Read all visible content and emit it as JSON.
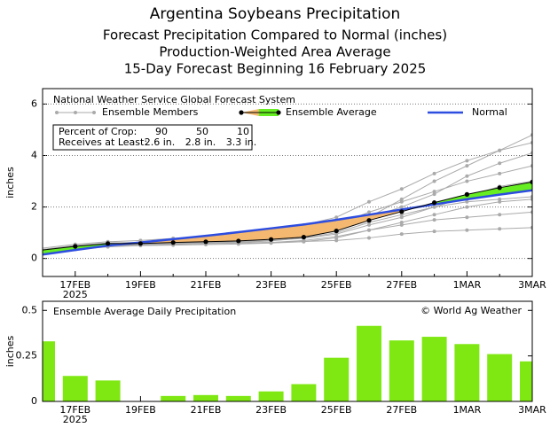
{
  "chart_data": [
    {
      "type": "line",
      "title": "Argentina Soybeans Precipitation",
      "subtitle": [
        "Forecast Precipitation Compared to Normal (inches)",
        "Production-Weighted Area Average",
        "15-Day Forecast Beginning 16 February 2025"
      ],
      "note": "National Weather Service Global Forecast System",
      "y_label": "inches",
      "categories": [
        null,
        "17FEB",
        null,
        "19FEB",
        null,
        "21FEB",
        null,
        "23FEB",
        null,
        "25FEB",
        null,
        "27FEB",
        null,
        "1MAR",
        null,
        "3MAR"
      ],
      "year_label": "2025",
      "ylim": [
        -0.7,
        6.6
      ],
      "yticks": [
        0,
        2,
        4,
        6
      ],
      "grid": true,
      "ensemble_members": {
        "name": "Ensemble Members",
        "color": "#aaaaaa",
        "values": [
          [
            0.35,
            0.5,
            0.6,
            0.62,
            0.64,
            0.66,
            0.7,
            0.75,
            0.9,
            1.2,
            1.6,
            2.3,
            3.0,
            3.6,
            4.2,
            4.8
          ],
          [
            0.3,
            0.45,
            0.55,
            0.56,
            0.58,
            0.6,
            0.62,
            0.68,
            0.8,
            1.0,
            1.4,
            1.7,
            2.0,
            2.2,
            2.3,
            2.4
          ],
          [
            0.2,
            0.35,
            0.45,
            0.5,
            0.52,
            0.54,
            0.56,
            0.6,
            0.65,
            0.8,
            1.1,
            1.3,
            1.5,
            1.6,
            1.7,
            1.8
          ],
          [
            0.4,
            0.55,
            0.65,
            0.7,
            0.78,
            0.85,
            0.95,
            1.1,
            1.3,
            1.6,
            2.2,
            2.7,
            3.3,
            3.8,
            4.2,
            4.5
          ],
          [
            0.25,
            0.4,
            0.5,
            0.52,
            0.55,
            0.58,
            0.6,
            0.62,
            0.66,
            0.7,
            0.8,
            0.95,
            1.05,
            1.1,
            1.15,
            1.2
          ],
          [
            0.3,
            0.48,
            0.6,
            0.62,
            0.66,
            0.7,
            0.72,
            0.8,
            0.95,
            1.3,
            1.8,
            2.2,
            2.6,
            3.0,
            3.3,
            3.6
          ],
          [
            0.35,
            0.5,
            0.58,
            0.6,
            0.62,
            0.64,
            0.66,
            0.7,
            0.78,
            0.95,
            1.3,
            1.6,
            2.0,
            2.4,
            2.8,
            3.0
          ],
          [
            0.28,
            0.42,
            0.52,
            0.55,
            0.57,
            0.59,
            0.6,
            0.62,
            0.7,
            0.85,
            1.1,
            1.4,
            1.7,
            2.0,
            2.2,
            2.3
          ],
          [
            0.3,
            0.45,
            0.55,
            0.57,
            0.6,
            0.62,
            0.65,
            0.7,
            0.8,
            1.1,
            1.6,
            2.0,
            2.5,
            3.2,
            3.7,
            4.1
          ]
        ]
      },
      "series": [
        {
          "name": "Ensemble Average",
          "color": "#000000",
          "values": [
            0.33,
            0.47,
            0.58,
            0.58,
            0.62,
            0.65,
            0.68,
            0.74,
            0.83,
            1.07,
            1.48,
            1.82,
            2.17,
            2.49,
            2.75,
            2.97
          ]
        },
        {
          "name": "Normal",
          "color": "#2d4de0",
          "values": [
            0.15,
            0.33,
            0.5,
            0.62,
            0.75,
            0.88,
            1.02,
            1.17,
            1.32,
            1.5,
            1.7,
            1.9,
            2.1,
            2.3,
            2.48,
            2.65
          ]
        }
      ],
      "below_color": "#f4b870",
      "above_color": "#66ee22",
      "percentiles": {
        "header": "Percent of Crop:",
        "row_label": "Receives at Least:",
        "percents": [
          90,
          50,
          10
        ],
        "amounts": [
          "2.6 in.",
          "2.8 in.",
          "3.3 in."
        ]
      }
    },
    {
      "type": "bar",
      "title": "Ensemble Average Daily Precipitation",
      "credit": "© World Ag Weather",
      "y_label": "inches",
      "categories": [
        null,
        "17FEB",
        null,
        "19FEB",
        null,
        "21FEB",
        null,
        "23FEB",
        null,
        "25FEB",
        null,
        "27FEB",
        null,
        "1MAR",
        null,
        "3MAR"
      ],
      "year_label": "2025",
      "ylim": [
        0,
        0.55
      ],
      "yticks": [
        0,
        0.25,
        0.5
      ],
      "color": "#7fe812",
      "values": [
        0.33,
        0.14,
        0.115,
        0,
        0.03,
        0.035,
        0.03,
        0.055,
        0.095,
        0.24,
        0.415,
        0.335,
        0.355,
        0.315,
        0.26,
        0.22
      ]
    }
  ]
}
